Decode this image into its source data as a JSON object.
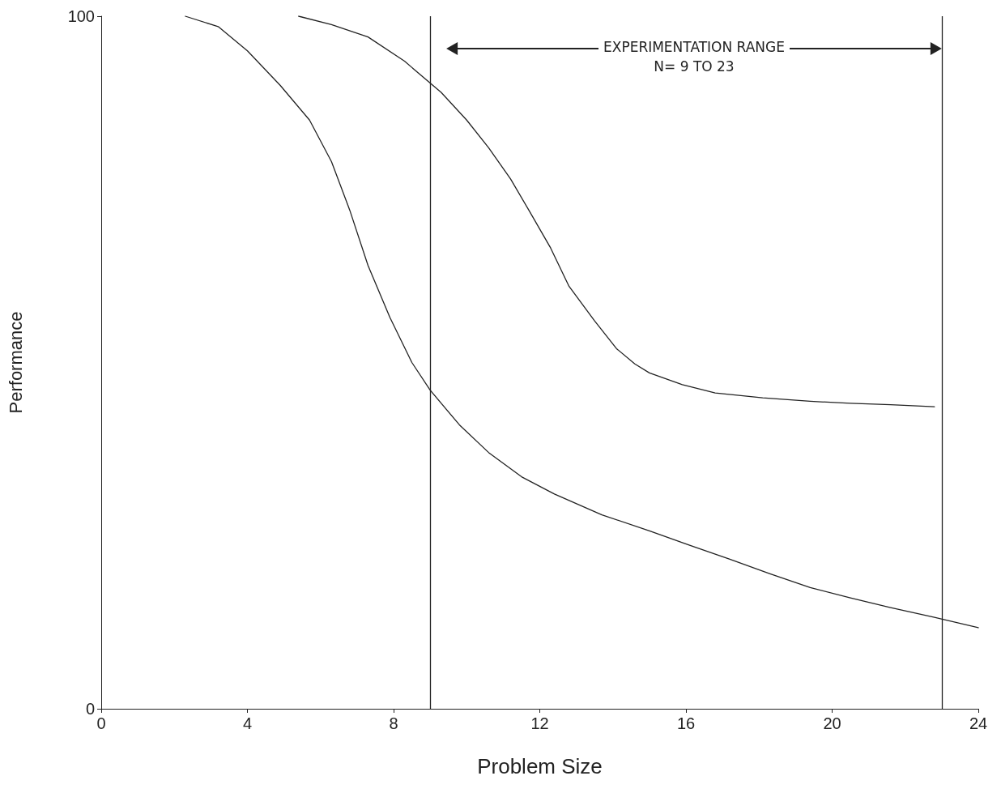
{
  "chart_data": {
    "type": "line",
    "xlabel": "Problem Size",
    "ylabel": "Performance",
    "xlim": [
      0,
      24
    ],
    "xticks": [
      0,
      4,
      8,
      12,
      16,
      20,
      24
    ],
    "ylim": [
      0,
      100
    ],
    "yticks": [
      0,
      100
    ],
    "grid": false,
    "marker": "none",
    "line_style": "solid",
    "series": [
      {
        "color": "#222222",
        "x": [
          2.3,
          3.2,
          4.0,
          4.9,
          5.7,
          6.3,
          6.8,
          7.3,
          7.9,
          8.5,
          9.0,
          9.8,
          10.6,
          11.5,
          12.4,
          13.7,
          15.0,
          16.1,
          17.2,
          18.3,
          19.4,
          20.5,
          21.6,
          22.8,
          24.0
        ],
        "values": [
          100,
          98.5,
          95,
          90,
          85,
          79,
          72,
          64,
          56.5,
          50,
          46,
          41,
          37,
          33.5,
          31,
          28,
          25.7,
          23.6,
          21.6,
          19.5,
          17.5,
          16,
          14.6,
          13.2,
          11.7
        ]
      },
      {
        "color": "#222222",
        "x": [
          5.4,
          6.3,
          7.3,
          8.3,
          9.3,
          10.0,
          10.6,
          11.2,
          11.7,
          12.3,
          12.8,
          13.5,
          14.1,
          14.6,
          15.0,
          15.9,
          16.8,
          18.1,
          19.4,
          20.5,
          21.6,
          22.8
        ],
        "values": [
          100,
          98.8,
          97,
          93.5,
          89,
          85,
          81,
          76.5,
          72,
          66.5,
          61,
          56,
          52,
          49.8,
          48.5,
          46.8,
          45.6,
          44.9,
          44.4,
          44.1,
          43.9,
          43.6
        ]
      }
    ],
    "ref_lines": [
      {
        "axis": "x",
        "value": 9,
        "color": "#222222"
      },
      {
        "axis": "x",
        "value": 23,
        "color": "#222222"
      }
    ],
    "annotations": [
      "EXPERIMENTATION RANGE",
      "N= 9 TO 23"
    ]
  }
}
